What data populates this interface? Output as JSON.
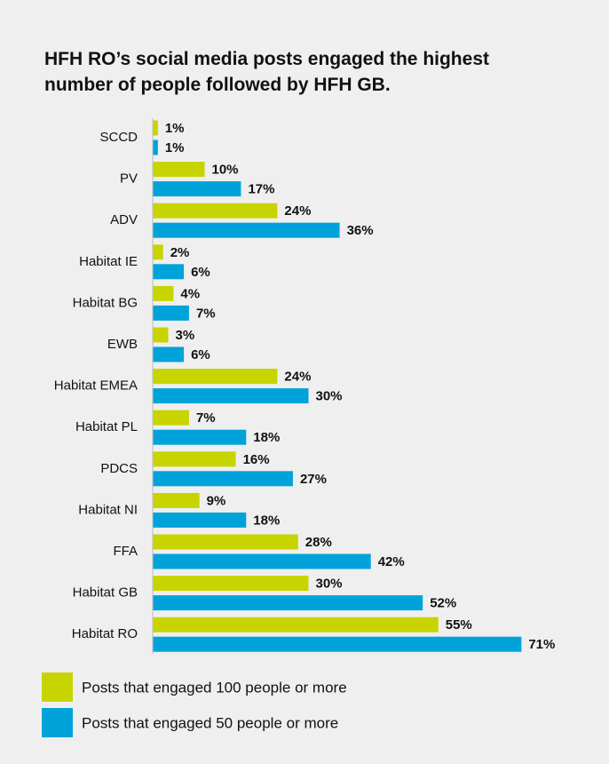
{
  "chart_data": {
    "type": "bar",
    "orientation": "horizontal",
    "title": "HFH RO’s social media posts engaged the highest number of people followed by HFH GB.",
    "categories": [
      "SCCD",
      "PV",
      "ADV",
      "Habitat IE",
      "Habitat BG",
      "EWB",
      "Habitat EMEA",
      "Habitat PL",
      "PDCS",
      "Habitat NI",
      "FFA",
      "Habitat GB",
      "Habitat RO"
    ],
    "series": [
      {
        "name": "Posts that engaged 100 people or more",
        "color": "#c8d400",
        "values": [
          1,
          10,
          24,
          2,
          4,
          3,
          24,
          7,
          16,
          9,
          28,
          30,
          55
        ],
        "value_labels": [
          "1%",
          "10%",
          "24%",
          "2%",
          "4%",
          "3%",
          "24%",
          "7%",
          "16%",
          "9%",
          "28%",
          "30%",
          "55%"
        ]
      },
      {
        "name": "Posts that engaged 50 people or more",
        "color": "#00a3d9",
        "values": [
          1,
          17,
          36,
          6,
          7,
          6,
          30,
          18,
          27,
          18,
          42,
          52,
          71
        ],
        "value_labels": [
          "1%",
          "17%",
          "36%",
          "6%",
          "7%",
          "6%",
          "30%",
          "18%",
          "27%",
          "18%",
          "42%",
          "52%",
          "71%"
        ]
      }
    ]
  }
}
